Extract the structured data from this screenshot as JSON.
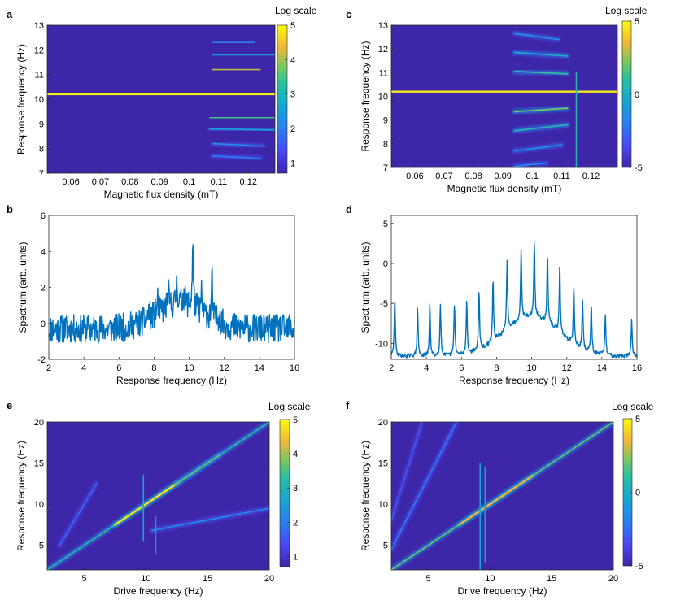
{
  "chart_data": [
    {
      "panel": "a",
      "type": "heatmap",
      "colormap": "parula",
      "scale_label": "Log scale",
      "xlabel": "Magnetic flux density (mT)",
      "ylabel": "Response frequency (Hz)",
      "xlim": [
        0.052,
        0.129
      ],
      "ylim": [
        7,
        13
      ],
      "xticks": [
        0.06,
        0.07,
        0.08,
        0.09,
        0.1,
        0.11,
        0.12
      ],
      "xtick_labels": [
        "0.06",
        "0.07",
        "0.08",
        "0.09",
        "0.1",
        "0.11",
        "0.12"
      ],
      "yticks": [
        7,
        8,
        9,
        10,
        11,
        12,
        13
      ],
      "colorbar": {
        "min": 0.7,
        "max": 5,
        "ticks": [
          1,
          2,
          3,
          4,
          5
        ]
      },
      "ridges": [
        {
          "x0": 0.052,
          "x1": 0.129,
          "y0": 10.2,
          "y1": 10.2,
          "level": 0.97
        },
        {
          "x0": 0.108,
          "x1": 0.124,
          "y0": 11.2,
          "y1": 11.2,
          "level": 0.8
        },
        {
          "x0": 0.107,
          "x1": 0.129,
          "y0": 9.25,
          "y1": 9.25,
          "level": 0.65
        },
        {
          "x0": 0.107,
          "x1": 0.129,
          "y0": 8.8,
          "y1": 8.75,
          "level": 0.45
        },
        {
          "x0": 0.108,
          "x1": 0.129,
          "y0": 11.8,
          "y1": 11.8,
          "level": 0.4
        },
        {
          "x0": 0.108,
          "x1": 0.125,
          "y0": 8.2,
          "y1": 8.1,
          "level": 0.35
        },
        {
          "x0": 0.108,
          "x1": 0.124,
          "y0": 7.7,
          "y1": 7.6,
          "level": 0.3
        },
        {
          "x0": 0.108,
          "x1": 0.122,
          "y0": 12.3,
          "y1": 12.3,
          "level": 0.3
        }
      ]
    },
    {
      "panel": "b",
      "type": "line",
      "color": "#0072bd",
      "xlabel": "Response frequency (Hz)",
      "ylabel": "Spectrum (arb. units)",
      "xlim": [
        2,
        16
      ],
      "ylim": [
        -2,
        6
      ],
      "xticks": [
        2,
        4,
        6,
        8,
        10,
        12,
        14,
        16
      ],
      "yticks": [
        -2,
        0,
        2,
        4,
        6
      ],
      "baseline": -0.3,
      "noise": 0.8,
      "hump": {
        "center": 9.5,
        "width": 1.9,
        "height": 1.4
      },
      "peaks": [
        {
          "x": 7.7,
          "h": 0.6
        },
        {
          "x": 8.2,
          "h": 0.8
        },
        {
          "x": 8.8,
          "h": 1.0
        },
        {
          "x": 9.3,
          "h": 1.5
        },
        {
          "x": 9.7,
          "h": 0.9
        },
        {
          "x": 10.2,
          "h": 3.5
        },
        {
          "x": 10.7,
          "h": 1.0
        },
        {
          "x": 11.3,
          "h": 2.3
        },
        {
          "x": 11.7,
          "h": 0.7
        }
      ],
      "seed": 11
    },
    {
      "panel": "c",
      "type": "heatmap",
      "colormap": "parula",
      "scale_label": "Log scale",
      "xlabel": "Magnetic flux density (mT)",
      "ylabel": "Response frequency (Hz)",
      "xlim": [
        0.052,
        0.129
      ],
      "ylim": [
        7,
        13
      ],
      "xticks": [
        0.06,
        0.07,
        0.08,
        0.09,
        0.1,
        0.11,
        0.12
      ],
      "xtick_labels": [
        "0.06",
        "0.07",
        "0.08",
        "0.09",
        "0.1",
        "0.11",
        "0.12"
      ],
      "yticks": [
        7,
        8,
        9,
        10,
        11,
        12,
        13
      ],
      "colorbar": {
        "min": -5,
        "max": 5,
        "ticks": [
          -5,
          0,
          5
        ]
      },
      "ridges": [
        {
          "x0": 0.052,
          "x1": 0.129,
          "y0": 10.2,
          "y1": 10.2,
          "level": 0.96
        },
        {
          "x0": 0.094,
          "x1": 0.112,
          "y0": 9.35,
          "y1": 9.5,
          "level": 0.72
        },
        {
          "x0": 0.094,
          "x1": 0.112,
          "y0": 11.05,
          "y1": 10.95,
          "level": 0.62
        },
        {
          "x0": 0.094,
          "x1": 0.112,
          "y0": 8.55,
          "y1": 8.8,
          "level": 0.58
        },
        {
          "x0": 0.094,
          "x1": 0.112,
          "y0": 11.85,
          "y1": 11.7,
          "level": 0.5
        },
        {
          "x0": 0.094,
          "x1": 0.11,
          "y0": 7.7,
          "y1": 7.95,
          "level": 0.4
        },
        {
          "x0": 0.094,
          "x1": 0.109,
          "y0": 12.65,
          "y1": 12.4,
          "level": 0.4
        },
        {
          "x0": 0.094,
          "x1": 0.105,
          "y0": 7.05,
          "y1": 7.2,
          "level": 0.35
        },
        {
          "x0": 0.115,
          "x1": 0.115,
          "y0": 7.0,
          "y1": 11.0,
          "level": 0.55
        }
      ]
    },
    {
      "panel": "d",
      "type": "line",
      "color": "#0072bd",
      "xlabel": "Response frequency (Hz)",
      "ylabel": "Spectrum (arb. units)",
      "xlim": [
        2,
        16
      ],
      "ylim": [
        -12,
        6
      ],
      "xticks": [
        2,
        4,
        6,
        8,
        10,
        12,
        14,
        16
      ],
      "yticks": [
        -10,
        -5,
        0,
        5
      ],
      "baseline": -11.6,
      "noise": 0.25,
      "hump": {
        "center": 10.0,
        "width": 2.2,
        "height": 5.0
      },
      "peaks": [
        {
          "x": 2.2,
          "h": 7.5
        },
        {
          "x": 3.5,
          "h": 6.0
        },
        {
          "x": 4.2,
          "h": 6.5
        },
        {
          "x": 4.8,
          "h": 6.6
        },
        {
          "x": 5.6,
          "h": 6.6
        },
        {
          "x": 6.3,
          "h": 6.8
        },
        {
          "x": 7.0,
          "h": 7.6
        },
        {
          "x": 7.8,
          "h": 7.8
        },
        {
          "x": 8.6,
          "h": 8.7
        },
        {
          "x": 9.4,
          "h": 8.8
        },
        {
          "x": 10.15,
          "h": 9.3
        },
        {
          "x": 10.9,
          "h": 8.6
        },
        {
          "x": 11.6,
          "h": 8.5
        },
        {
          "x": 12.4,
          "h": 7.3
        },
        {
          "x": 12.9,
          "h": 6.0
        },
        {
          "x": 13.4,
          "h": 6.3
        },
        {
          "x": 14.2,
          "h": 5.0
        },
        {
          "x": 15.7,
          "h": 4.5
        }
      ],
      "seed": 29
    },
    {
      "panel": "e",
      "type": "heatmap",
      "colormap": "parula",
      "scale_label": "Log scale",
      "xlabel": "Drive frequency (Hz)",
      "ylabel": "Response frequency (Hz)",
      "xlim": [
        2,
        20
      ],
      "ylim": [
        2,
        20
      ],
      "xticks": [
        5,
        10,
        15,
        20
      ],
      "yticks": [
        5,
        10,
        15,
        20
      ],
      "colorbar": {
        "min": 0.7,
        "max": 5,
        "ticks": [
          1,
          2,
          3,
          4,
          5
        ]
      },
      "ridges": [
        {
          "x0": 2,
          "x1": 20,
          "y0": 2,
          "y1": 20,
          "level": 0.6
        },
        {
          "x0": 7.5,
          "x1": 12.5,
          "y0": 7.5,
          "y1": 12.5,
          "level": 0.95
        },
        {
          "x0": 12.5,
          "x1": 16,
          "y0": 12.5,
          "y1": 16,
          "level": 0.7
        },
        {
          "x0": 10.5,
          "x1": 20,
          "y0": 6.8,
          "y1": 9.5,
          "level": 0.35
        },
        {
          "x0": 3.0,
          "x1": 6.0,
          "y0": 5.0,
          "y1": 12.5,
          "level": 0.25
        },
        {
          "x0": 9.8,
          "x1": 9.8,
          "y0": 5.5,
          "y1": 13.5,
          "level": 0.45
        },
        {
          "x0": 10.8,
          "x1": 10.8,
          "y0": 4.0,
          "y1": 8.5,
          "level": 0.35
        }
      ]
    },
    {
      "panel": "f",
      "type": "heatmap",
      "colormap": "parula",
      "scale_label": "Log scale",
      "xlabel": "Drive frequency (Hz)",
      "ylabel": "Response frequency (Hz)",
      "xlim": [
        2,
        20
      ],
      "ylim": [
        2,
        20
      ],
      "xticks": [
        5,
        10,
        15,
        20
      ],
      "yticks": [
        5,
        10,
        15,
        20
      ],
      "colorbar": {
        "min": -5,
        "max": 5,
        "ticks": [
          -5,
          0,
          5
        ]
      },
      "ridges": [
        {
          "x0": 2,
          "x1": 20,
          "y0": 2,
          "y1": 20,
          "level": 0.7
        },
        {
          "x0": 7.5,
          "x1": 13.5,
          "y0": 7.5,
          "y1": 13.5,
          "level": 0.85
        },
        {
          "x0": 2,
          "x1": 7.3,
          "y0": 4.5,
          "y1": 20,
          "level": 0.3
        },
        {
          "x0": 2,
          "x1": 4.5,
          "y0": 8.0,
          "y1": 20,
          "level": 0.2
        },
        {
          "x0": 9.2,
          "x1": 9.2,
          "y0": 2.0,
          "y1": 15.0,
          "level": 0.45
        },
        {
          "x0": 9.6,
          "x1": 9.6,
          "y0": 3.0,
          "y1": 14.5,
          "level": 0.4
        }
      ]
    }
  ],
  "panel_labels": {
    "a": "a",
    "b": "b",
    "c": "c",
    "d": "d",
    "e": "e",
    "f": "f"
  },
  "colorbar_captions": {
    "a": "Log scale",
    "c": "Log scale",
    "e": "Log scale",
    "f": "Log scale"
  }
}
